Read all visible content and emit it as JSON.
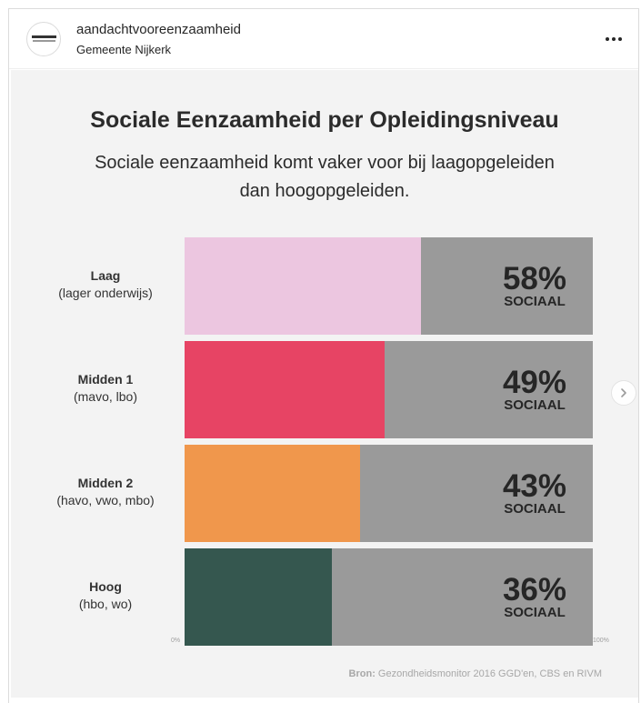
{
  "post": {
    "username": "aandachtvooreenzaamheid",
    "location": "Gemeente Nijkerk",
    "more_icon": "ellipsis-icon",
    "next_icon": "chevron-right-icon"
  },
  "chart_data": {
    "type": "bar",
    "title": "Sociale Eenzaamheid per Opleidingsniveau",
    "subtitle_line1": "Sociale eenzaamheid komt vaker voor bij laagopgeleiden",
    "subtitle_line2": "dan hoogopgeleiden.",
    "categories": [
      {
        "name": "Laag",
        "detail": "(lager onderwijs)"
      },
      {
        "name": "Midden 1",
        "detail": "(mavo, lbo)"
      },
      {
        "name": "Midden 2",
        "detail": "(havo, vwo, mbo)"
      },
      {
        "name": "Hoog",
        "detail": "(hbo, wo)"
      }
    ],
    "values": [
      58,
      49,
      43,
      36
    ],
    "value_labels": [
      "58%",
      "49%",
      "43%",
      "36%"
    ],
    "value_caption": "SOCIAAL",
    "colors": [
      "#ecc6e0",
      "#e74464",
      "#f0974c",
      "#35574f"
    ],
    "background_bar_color": "#9a9a9a",
    "xlim": [
      0,
      100
    ],
    "x_ticks": [
      "0%",
      "100%"
    ],
    "source_label": "Bron:",
    "source_text": " Gezondheidsmonitor 2016 GGD'en, CBS en RIVM"
  }
}
